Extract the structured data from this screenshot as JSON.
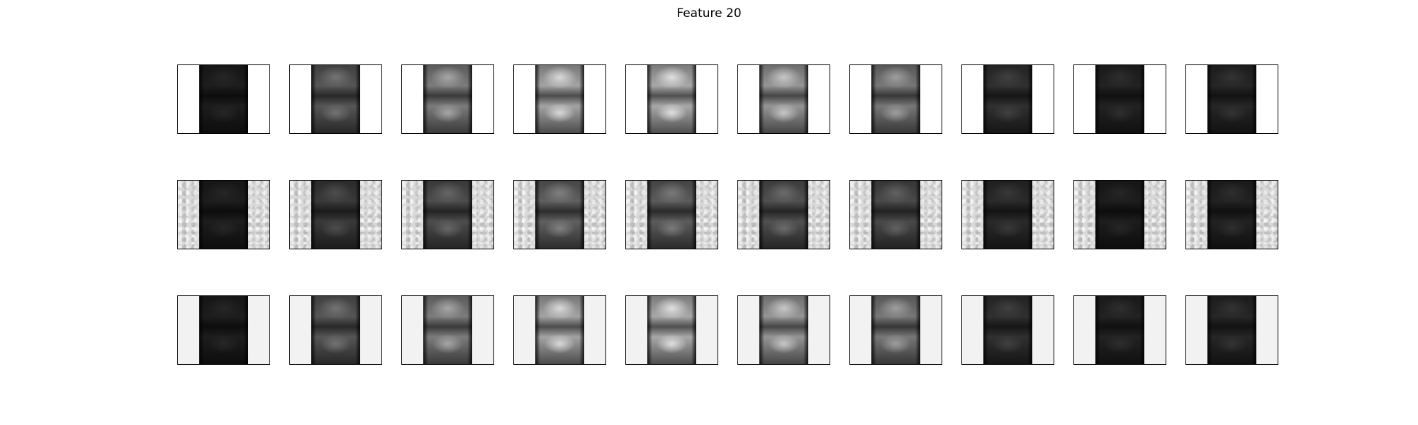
{
  "title": "Feature 20",
  "grid": {
    "rows": 3,
    "cols": 10,
    "row_styles": [
      "blank",
      "texture",
      "soft"
    ],
    "brightness": [
      [
        0.15,
        0.45,
        0.65,
        0.85,
        0.88,
        0.78,
        0.62,
        0.25,
        0.18,
        0.2
      ],
      [
        0.15,
        0.3,
        0.4,
        0.5,
        0.48,
        0.42,
        0.38,
        0.22,
        0.15,
        0.18
      ],
      [
        0.15,
        0.45,
        0.65,
        0.85,
        0.88,
        0.78,
        0.62,
        0.25,
        0.18,
        0.2
      ]
    ]
  }
}
